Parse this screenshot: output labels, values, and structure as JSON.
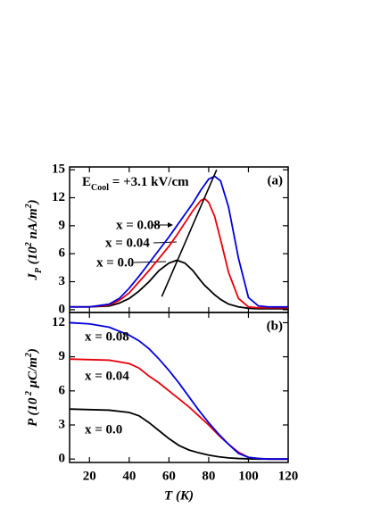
{
  "chart_data": [
    {
      "type": "line",
      "panel_label": "(a)",
      "ylabel": [
        {
          "text": "J"
        },
        {
          "text": "P",
          "shift": "sub"
        },
        {
          "text": " (10"
        },
        {
          "text": "2",
          "shift": "sup"
        },
        {
          "text": " nA/m"
        },
        {
          "text": "2",
          "shift": "sup"
        },
        {
          "text": ")"
        }
      ],
      "annotation": [
        {
          "text": "E"
        },
        {
          "text": "Cool",
          "shift": "sub"
        },
        {
          "text": " = +3.1 kV/cm"
        }
      ],
      "x": [
        10,
        20,
        30,
        35,
        40,
        45,
        50,
        55,
        60,
        64,
        68,
        72,
        76,
        78,
        80,
        83,
        86,
        90,
        95,
        100,
        105,
        110,
        120
      ],
      "series": [
        {
          "name": "x = 0.0",
          "color": "#000000",
          "values": [
            0.3,
            0.3,
            0.4,
            0.7,
            1.2,
            2,
            3,
            4.2,
            5,
            5.3,
            5,
            4.2,
            3.1,
            2.6,
            2.2,
            1.6,
            1.1,
            0.6,
            0.3,
            0.15,
            0.1,
            0.1,
            0.1
          ]
        },
        {
          "name": "x = 0.04",
          "color": "#e8000b",
          "values": [
            0.3,
            0.3,
            0.5,
            1,
            1.8,
            3,
            4.2,
            5.5,
            6.8,
            8,
            9.3,
            10.6,
            11.7,
            11.9,
            11.5,
            10,
            7.5,
            4,
            1.2,
            0.3,
            0.2,
            0.2,
            0.2
          ]
        },
        {
          "name": "x = 0.08",
          "color": "#0000e0",
          "values": [
            0.3,
            0.3,
            0.6,
            1.2,
            2.3,
            3.6,
            5,
            6.4,
            7.8,
            9,
            10.2,
            11.4,
            12.8,
            13.4,
            14,
            14.3,
            13.8,
            11,
            5.5,
            1.3,
            0.4,
            0.3,
            0.3
          ]
        }
      ],
      "fit_line": {
        "x": [
          56.4,
          84
        ],
        "values": [
          1.4,
          15
        ]
      },
      "xlim": [
        10,
        120
      ],
      "xticks": [
        20,
        40,
        60,
        80,
        100,
        120
      ],
      "ylim": [
        -0.3,
        15.3
      ],
      "yticks": [
        0,
        3,
        6,
        9,
        12,
        15
      ]
    },
    {
      "type": "line",
      "panel_label": "(b)",
      "ylabel": [
        {
          "text": "P (10"
        },
        {
          "text": " 2",
          "shift": "sup"
        },
        {
          "text": " μC/m"
        },
        {
          "text": "2",
          "shift": "sup"
        },
        {
          "text": ")"
        }
      ],
      "xlabel": "T (K)",
      "x": [
        10,
        20,
        30,
        40,
        45,
        50,
        55,
        60,
        65,
        70,
        75,
        80,
        85,
        90,
        95,
        100,
        105,
        110,
        120
      ],
      "series": [
        {
          "name": "x = 0.0",
          "color": "#000000",
          "values": [
            4.4,
            4.35,
            4.3,
            4.1,
            3.8,
            3.2,
            2.5,
            1.8,
            1.2,
            0.8,
            0.55,
            0.35,
            0.2,
            0.1,
            0.05,
            0.02,
            0,
            0,
            0
          ]
        },
        {
          "name": "x = 0.04",
          "color": "#e8000b",
          "values": [
            8.8,
            8.75,
            8.7,
            8.4,
            8,
            7.3,
            6.7,
            6,
            5.3,
            4.6,
            3.8,
            3,
            2.1,
            1.3,
            0.6,
            0.15,
            0.05,
            0,
            0
          ]
        },
        {
          "name": "x = 0.08",
          "color": "#0000e0",
          "values": [
            12,
            11.9,
            11.6,
            10.9,
            10.4,
            9.7,
            8.8,
            7.8,
            6.7,
            5.5,
            4.3,
            3.2,
            2.2,
            1.3,
            0.5,
            0.15,
            0.05,
            0,
            0
          ]
        }
      ],
      "xlim": [
        10,
        120
      ],
      "xticks": [
        20,
        40,
        60,
        80,
        100,
        120
      ],
      "ylim": [
        -0.3,
        12.9
      ],
      "yticks": [
        0,
        3,
        6,
        9,
        12
      ]
    }
  ]
}
